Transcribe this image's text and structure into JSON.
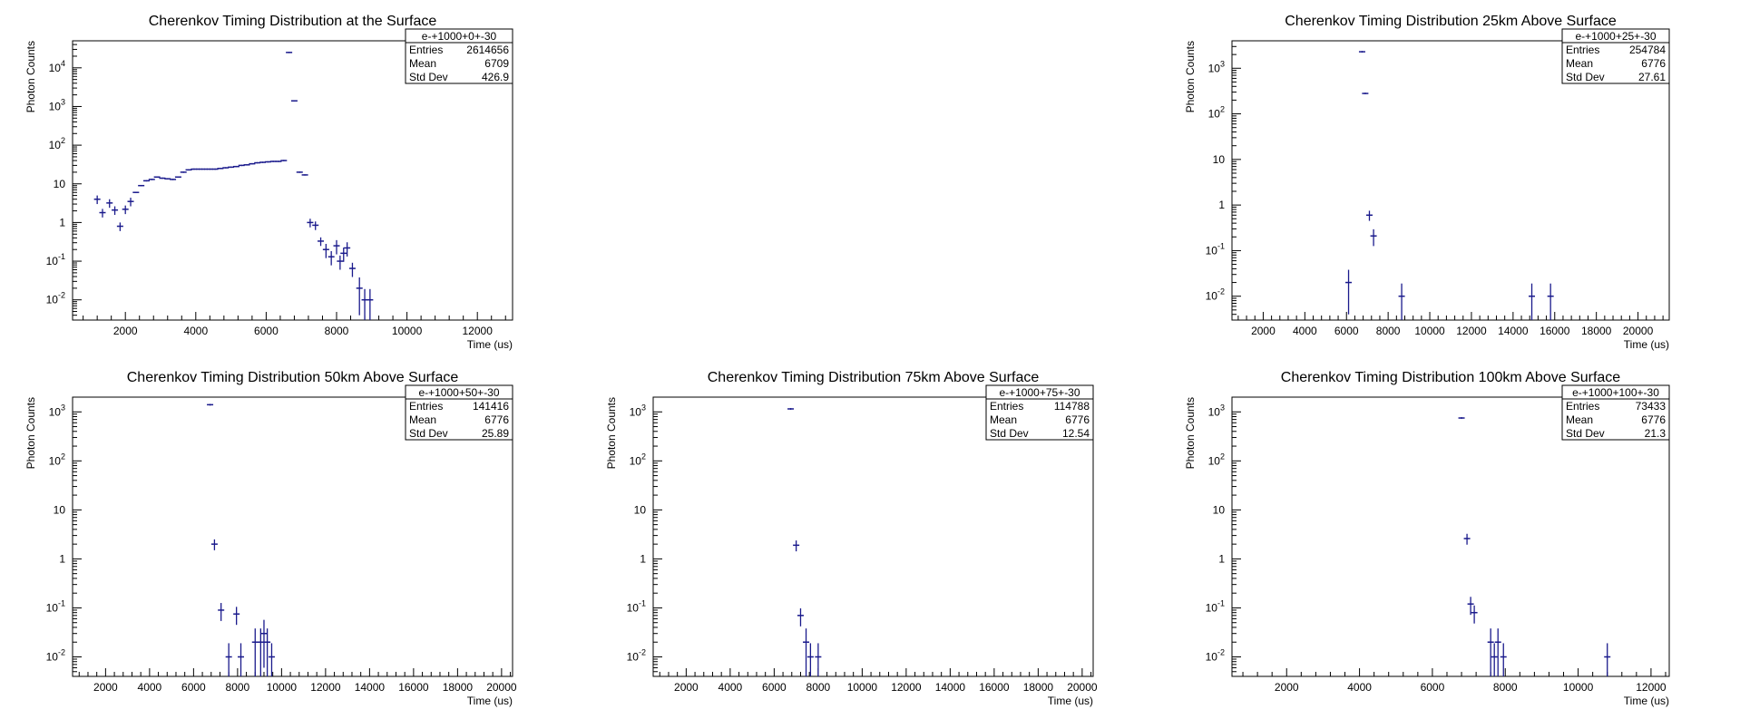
{
  "chart_data": [
    {
      "type": "scatter",
      "title": "Cherenkov Timing Distribution at the Surface",
      "xlabel": "Time (us)",
      "ylabel": "Photon Counts",
      "xlim": [
        500,
        13000
      ],
      "ylim": [
        0.003,
        50000
      ],
      "y_scale": "log",
      "x_ticks": [
        2000,
        4000,
        6000,
        8000,
        10000,
        12000
      ],
      "y_ticks": [
        {
          "v": 0.01,
          "base": "10",
          "exp": "-2"
        },
        {
          "v": 0.1,
          "base": "10",
          "exp": "-1"
        },
        {
          "v": 1,
          "base": "1",
          "exp": ""
        },
        {
          "v": 10,
          "base": "10",
          "exp": ""
        },
        {
          "v": 100,
          "base": "10",
          "exp": "2"
        },
        {
          "v": 1000,
          "base": "10",
          "exp": "3"
        },
        {
          "v": 10000,
          "base": "10",
          "exp": "4"
        }
      ],
      "stats": {
        "name": "e-+1000+0+-30",
        "rows": [
          {
            "label": "Entries",
            "value": "2614656"
          },
          {
            "label": "Mean",
            "value": "6709"
          },
          {
            "label": "Std Dev",
            "value": "426.9"
          }
        ]
      },
      "series": [
        {
          "x": [
            1200,
            1350,
            1550,
            1700,
            1850,
            2000,
            2150,
            2300,
            2450,
            2600,
            2750,
            2900,
            3050,
            3200,
            3350,
            3500,
            3650,
            3800,
            3950,
            4100,
            4250,
            4400,
            4550,
            4700,
            4850,
            5000,
            5150,
            5300,
            5450,
            5600,
            5750,
            5900,
            6050,
            6200,
            6350,
            6500,
            6650,
            6800,
            6950,
            7100,
            7250,
            7400,
            7550,
            7700,
            7850,
            8000,
            8100,
            8200,
            8300,
            8450,
            8650,
            8800,
            8950
          ],
          "y": [
            4,
            1.8,
            3.2,
            2.1,
            0.8,
            2.2,
            3.5,
            6,
            9,
            12,
            13,
            15,
            14,
            13.5,
            13,
            15,
            20,
            23,
            24,
            24,
            24,
            24,
            24,
            25,
            26,
            27,
            28,
            30,
            31,
            33,
            35,
            36,
            37,
            38,
            38,
            40,
            25000,
            1400,
            20,
            17,
            1.0,
            0.85,
            0.33,
            0.2,
            0.13,
            0.25,
            0.1,
            0.16,
            0.22,
            0.065,
            0.02,
            0.01,
            0.01
          ]
        }
      ]
    },
    {
      "type": "scatter",
      "title": "Cherenkov Timing Distribution 25km Above Surface",
      "xlabel": "Time (us)",
      "ylabel": "Photon Counts",
      "xlim": [
        500,
        21500
      ],
      "ylim": [
        0.003,
        4000
      ],
      "y_scale": "log",
      "x_ticks": [
        2000,
        4000,
        6000,
        8000,
        10000,
        12000,
        14000,
        16000,
        18000,
        20000
      ],
      "y_ticks": [
        {
          "v": 0.01,
          "base": "10",
          "exp": "-2"
        },
        {
          "v": 0.1,
          "base": "10",
          "exp": "-1"
        },
        {
          "v": 1,
          "base": "1",
          "exp": ""
        },
        {
          "v": 10,
          "base": "10",
          "exp": ""
        },
        {
          "v": 100,
          "base": "10",
          "exp": "2"
        },
        {
          "v": 1000,
          "base": "10",
          "exp": "3"
        }
      ],
      "stats": {
        "name": "e-+1000+25+-30",
        "rows": [
          {
            "label": "Entries",
            "value": "254784"
          },
          {
            "label": "Mean",
            "value": "6776"
          },
          {
            "label": "Std Dev",
            "value": "27.61"
          }
        ]
      },
      "series": [
        {
          "x": [
            6100,
            6750,
            6900,
            7100,
            7300,
            8650,
            14900,
            15800
          ],
          "y": [
            0.02,
            2300,
            280,
            0.6,
            0.21,
            0.01,
            0.01,
            0.01
          ]
        }
      ]
    },
    {
      "type": "scatter",
      "title": "Cherenkov Timing Distribution 50km Above Surface",
      "xlabel": "Time (us)",
      "ylabel": "Photon Counts",
      "xlim": [
        500,
        20500
      ],
      "ylim": [
        0.004,
        2000
      ],
      "y_scale": "log",
      "x_ticks": [
        2000,
        4000,
        6000,
        8000,
        10000,
        12000,
        14000,
        16000,
        18000,
        20000
      ],
      "y_ticks": [
        {
          "v": 0.01,
          "base": "10",
          "exp": "-2"
        },
        {
          "v": 0.1,
          "base": "10",
          "exp": "-1"
        },
        {
          "v": 1,
          "base": "1",
          "exp": ""
        },
        {
          "v": 10,
          "base": "10",
          "exp": ""
        },
        {
          "v": 100,
          "base": "10",
          "exp": "2"
        },
        {
          "v": 1000,
          "base": "10",
          "exp": "3"
        }
      ],
      "stats": {
        "name": "e-+1000+50+-30",
        "rows": [
          {
            "label": "Entries",
            "value": "141416"
          },
          {
            "label": "Mean",
            "value": "6776"
          },
          {
            "label": "Std Dev",
            "value": "25.89"
          }
        ]
      },
      "series": [
        {
          "x": [
            6750,
            6950,
            7250,
            7600,
            7950,
            8150,
            8800,
            9050,
            9200,
            9350,
            9550
          ],
          "y": [
            1400,
            2,
            0.09,
            0.01,
            0.075,
            0.01,
            0.02,
            0.02,
            0.03,
            0.02,
            0.01
          ]
        }
      ]
    },
    {
      "type": "scatter",
      "title": "Cherenkov Timing Distribution 75km Above Surface",
      "xlabel": "Time (us)",
      "ylabel": "Photon Counts",
      "xlim": [
        500,
        20500
      ],
      "ylim": [
        0.004,
        2000
      ],
      "y_scale": "log",
      "x_ticks": [
        2000,
        4000,
        6000,
        8000,
        10000,
        12000,
        14000,
        16000,
        18000,
        20000
      ],
      "y_ticks": [
        {
          "v": 0.01,
          "base": "10",
          "exp": "-2"
        },
        {
          "v": 0.1,
          "base": "10",
          "exp": "-1"
        },
        {
          "v": 1,
          "base": "1",
          "exp": ""
        },
        {
          "v": 10,
          "base": "10",
          "exp": ""
        },
        {
          "v": 100,
          "base": "10",
          "exp": "2"
        },
        {
          "v": 1000,
          "base": "10",
          "exp": "3"
        }
      ],
      "stats": {
        "name": "e-+1000+75+-30",
        "rows": [
          {
            "label": "Entries",
            "value": "114788"
          },
          {
            "label": "Mean",
            "value": "6776"
          },
          {
            "label": "Std Dev",
            "value": "12.54"
          }
        ]
      },
      "series": [
        {
          "x": [
            6750,
            7000,
            7200,
            7450,
            7650,
            8000
          ],
          "y": [
            1150,
            1.9,
            0.07,
            0.02,
            0.01,
            0.01
          ]
        }
      ]
    },
    {
      "type": "scatter",
      "title": "Cherenkov Timing Distribution 100km Above Surface",
      "xlabel": "Time (us)",
      "ylabel": "Photon Counts",
      "xlim": [
        500,
        12500
      ],
      "ylim": [
        0.004,
        2000
      ],
      "y_scale": "log",
      "x_ticks": [
        2000,
        4000,
        6000,
        8000,
        10000,
        12000
      ],
      "y_ticks": [
        {
          "v": 0.01,
          "base": "10",
          "exp": "-2"
        },
        {
          "v": 0.1,
          "base": "10",
          "exp": "-1"
        },
        {
          "v": 1,
          "base": "1",
          "exp": ""
        },
        {
          "v": 10,
          "base": "10",
          "exp": ""
        },
        {
          "v": 100,
          "base": "10",
          "exp": "2"
        },
        {
          "v": 1000,
          "base": "10",
          "exp": "3"
        }
      ],
      "stats": {
        "name": "e-+1000+100+-30",
        "rows": [
          {
            "label": "Entries",
            "value": "73433"
          },
          {
            "label": "Mean",
            "value": "6776"
          },
          {
            "label": "Std Dev",
            "value": "21.3"
          }
        ]
      },
      "series": [
        {
          "x": [
            6800,
            6950,
            7050,
            7150,
            7600,
            7700,
            7800,
            7950,
            10800
          ],
          "y": [
            750,
            2.6,
            0.12,
            0.08,
            0.02,
            0.01,
            0.02,
            0.01,
            0.01
          ]
        }
      ]
    }
  ],
  "colors": {
    "marker": "#1a1a8c",
    "axis": "#000000",
    "background": "#ffffff"
  }
}
